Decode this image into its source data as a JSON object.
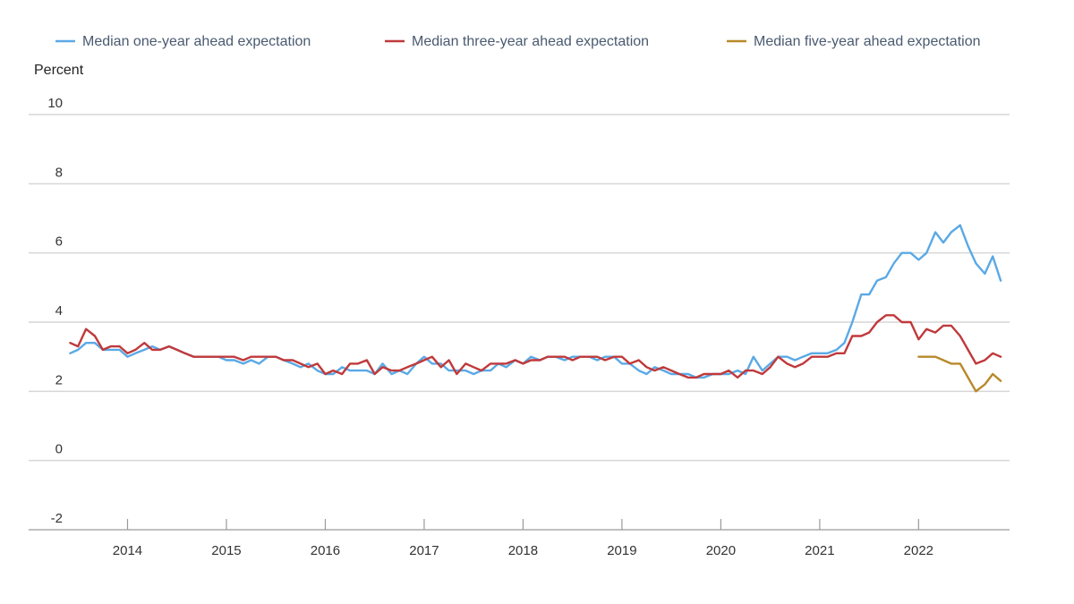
{
  "chart_data": {
    "type": "line",
    "ylabel": "Percent",
    "ylim": [
      -2,
      10
    ],
    "y_ticks": [
      "10",
      "8",
      "6",
      "4",
      "2",
      "0",
      "-2"
    ],
    "y_tick_values": [
      10,
      8,
      6,
      4,
      2,
      0,
      -2
    ],
    "x_ticks": [
      "2014",
      "2015",
      "2016",
      "2017",
      "2018",
      "2019",
      "2020",
      "2021",
      "2022"
    ],
    "x_tick_values": [
      2014,
      2015,
      2016,
      2017,
      2018,
      2019,
      2020,
      2021,
      2022
    ],
    "xlim": [
      2013.0,
      2022.92
    ],
    "grid": "horizontal",
    "legend_position": "top",
    "series": [
      {
        "name": "Median one-year ahead expectation",
        "color": "#5aa9e6",
        "points": [
          [
            2013.42,
            3.1
          ],
          [
            2013.5,
            3.2
          ],
          [
            2013.58,
            3.4
          ],
          [
            2013.67,
            3.4
          ],
          [
            2013.75,
            3.2
          ],
          [
            2013.83,
            3.2
          ],
          [
            2013.92,
            3.2
          ],
          [
            2014.0,
            3.0
          ],
          [
            2014.08,
            3.1
          ],
          [
            2014.17,
            3.2
          ],
          [
            2014.25,
            3.3
          ],
          [
            2014.33,
            3.2
          ],
          [
            2014.42,
            3.3
          ],
          [
            2014.5,
            3.2
          ],
          [
            2014.58,
            3.1
          ],
          [
            2014.67,
            3.0
          ],
          [
            2014.75,
            3.0
          ],
          [
            2014.83,
            3.0
          ],
          [
            2014.92,
            3.0
          ],
          [
            2015.0,
            2.9
          ],
          [
            2015.08,
            2.9
          ],
          [
            2015.17,
            2.8
          ],
          [
            2015.25,
            2.9
          ],
          [
            2015.33,
            2.8
          ],
          [
            2015.42,
            3.0
          ],
          [
            2015.5,
            3.0
          ],
          [
            2015.58,
            2.9
          ],
          [
            2015.67,
            2.8
          ],
          [
            2015.75,
            2.7
          ],
          [
            2015.83,
            2.8
          ],
          [
            2015.92,
            2.6
          ],
          [
            2016.0,
            2.5
          ],
          [
            2016.08,
            2.5
          ],
          [
            2016.17,
            2.7
          ],
          [
            2016.25,
            2.6
          ],
          [
            2016.33,
            2.6
          ],
          [
            2016.42,
            2.6
          ],
          [
            2016.5,
            2.5
          ],
          [
            2016.58,
            2.8
          ],
          [
            2016.67,
            2.5
          ],
          [
            2016.75,
            2.6
          ],
          [
            2016.83,
            2.5
          ],
          [
            2016.92,
            2.8
          ],
          [
            2017.0,
            3.0
          ],
          [
            2017.08,
            2.8
          ],
          [
            2017.17,
            2.8
          ],
          [
            2017.25,
            2.6
          ],
          [
            2017.33,
            2.6
          ],
          [
            2017.42,
            2.6
          ],
          [
            2017.5,
            2.5
          ],
          [
            2017.58,
            2.6
          ],
          [
            2017.67,
            2.6
          ],
          [
            2017.75,
            2.8
          ],
          [
            2017.83,
            2.7
          ],
          [
            2017.92,
            2.9
          ],
          [
            2018.0,
            2.8
          ],
          [
            2018.08,
            3.0
          ],
          [
            2018.17,
            2.9
          ],
          [
            2018.25,
            3.0
          ],
          [
            2018.33,
            3.0
          ],
          [
            2018.42,
            2.9
          ],
          [
            2018.5,
            3.0
          ],
          [
            2018.58,
            3.0
          ],
          [
            2018.67,
            3.0
          ],
          [
            2018.75,
            2.9
          ],
          [
            2018.83,
            3.0
          ],
          [
            2018.92,
            3.0
          ],
          [
            2019.0,
            2.8
          ],
          [
            2019.08,
            2.8
          ],
          [
            2019.17,
            2.6
          ],
          [
            2019.25,
            2.5
          ],
          [
            2019.33,
            2.7
          ],
          [
            2019.42,
            2.6
          ],
          [
            2019.5,
            2.5
          ],
          [
            2019.58,
            2.5
          ],
          [
            2019.67,
            2.5
          ],
          [
            2019.75,
            2.4
          ],
          [
            2019.83,
            2.4
          ],
          [
            2019.92,
            2.5
          ],
          [
            2020.0,
            2.5
          ],
          [
            2020.08,
            2.5
          ],
          [
            2020.17,
            2.6
          ],
          [
            2020.25,
            2.5
          ],
          [
            2020.33,
            3.0
          ],
          [
            2020.42,
            2.6
          ],
          [
            2020.5,
            2.8
          ],
          [
            2020.58,
            3.0
          ],
          [
            2020.67,
            3.0
          ],
          [
            2020.75,
            2.9
          ],
          [
            2020.83,
            3.0
          ],
          [
            2020.92,
            3.1
          ],
          [
            2021.0,
            3.1
          ],
          [
            2021.08,
            3.1
          ],
          [
            2021.17,
            3.2
          ],
          [
            2021.25,
            3.4
          ],
          [
            2021.33,
            4.0
          ],
          [
            2021.42,
            4.8
          ],
          [
            2021.5,
            4.8
          ],
          [
            2021.58,
            5.2
          ],
          [
            2021.67,
            5.3
          ],
          [
            2021.75,
            5.7
          ],
          [
            2021.83,
            6.0
          ],
          [
            2021.92,
            6.0
          ],
          [
            2022.0,
            5.8
          ],
          [
            2022.08,
            6.0
          ],
          [
            2022.17,
            6.6
          ],
          [
            2022.25,
            6.3
          ],
          [
            2022.33,
            6.6
          ],
          [
            2022.42,
            6.8
          ],
          [
            2022.5,
            6.2
          ],
          [
            2022.58,
            5.7
          ],
          [
            2022.67,
            5.4
          ],
          [
            2022.75,
            5.9
          ],
          [
            2022.83,
            5.2
          ]
        ]
      },
      {
        "name": "Median three-year ahead expectation",
        "color": "#c0393b",
        "points": [
          [
            2013.42,
            3.4
          ],
          [
            2013.5,
            3.3
          ],
          [
            2013.58,
            3.8
          ],
          [
            2013.67,
            3.6
          ],
          [
            2013.75,
            3.2
          ],
          [
            2013.83,
            3.3
          ],
          [
            2013.92,
            3.3
          ],
          [
            2014.0,
            3.1
          ],
          [
            2014.08,
            3.2
          ],
          [
            2014.17,
            3.4
          ],
          [
            2014.25,
            3.2
          ],
          [
            2014.33,
            3.2
          ],
          [
            2014.42,
            3.3
          ],
          [
            2014.5,
            3.2
          ],
          [
            2014.58,
            3.1
          ],
          [
            2014.67,
            3.0
          ],
          [
            2014.75,
            3.0
          ],
          [
            2014.83,
            3.0
          ],
          [
            2014.92,
            3.0
          ],
          [
            2015.0,
            3.0
          ],
          [
            2015.08,
            3.0
          ],
          [
            2015.17,
            2.9
          ],
          [
            2015.25,
            3.0
          ],
          [
            2015.33,
            3.0
          ],
          [
            2015.42,
            3.0
          ],
          [
            2015.5,
            3.0
          ],
          [
            2015.58,
            2.9
          ],
          [
            2015.67,
            2.9
          ],
          [
            2015.75,
            2.8
          ],
          [
            2015.83,
            2.7
          ],
          [
            2015.92,
            2.8
          ],
          [
            2016.0,
            2.5
          ],
          [
            2016.08,
            2.6
          ],
          [
            2016.17,
            2.5
          ],
          [
            2016.25,
            2.8
          ],
          [
            2016.33,
            2.8
          ],
          [
            2016.42,
            2.9
          ],
          [
            2016.5,
            2.5
          ],
          [
            2016.58,
            2.7
          ],
          [
            2016.67,
            2.6
          ],
          [
            2016.75,
            2.6
          ],
          [
            2016.83,
            2.7
          ],
          [
            2016.92,
            2.8
          ],
          [
            2017.0,
            2.9
          ],
          [
            2017.08,
            3.0
          ],
          [
            2017.17,
            2.7
          ],
          [
            2017.25,
            2.9
          ],
          [
            2017.33,
            2.5
          ],
          [
            2017.42,
            2.8
          ],
          [
            2017.5,
            2.7
          ],
          [
            2017.58,
            2.6
          ],
          [
            2017.67,
            2.8
          ],
          [
            2017.75,
            2.8
          ],
          [
            2017.83,
            2.8
          ],
          [
            2017.92,
            2.9
          ],
          [
            2018.0,
            2.8
          ],
          [
            2018.08,
            2.9
          ],
          [
            2018.17,
            2.9
          ],
          [
            2018.25,
            3.0
          ],
          [
            2018.33,
            3.0
          ],
          [
            2018.42,
            3.0
          ],
          [
            2018.5,
            2.9
          ],
          [
            2018.58,
            3.0
          ],
          [
            2018.67,
            3.0
          ],
          [
            2018.75,
            3.0
          ],
          [
            2018.83,
            2.9
          ],
          [
            2018.92,
            3.0
          ],
          [
            2019.0,
            3.0
          ],
          [
            2019.08,
            2.8
          ],
          [
            2019.17,
            2.9
          ],
          [
            2019.25,
            2.7
          ],
          [
            2019.33,
            2.6
          ],
          [
            2019.42,
            2.7
          ],
          [
            2019.5,
            2.6
          ],
          [
            2019.58,
            2.5
          ],
          [
            2019.67,
            2.4
          ],
          [
            2019.75,
            2.4
          ],
          [
            2019.83,
            2.5
          ],
          [
            2019.92,
            2.5
          ],
          [
            2020.0,
            2.5
          ],
          [
            2020.08,
            2.6
          ],
          [
            2020.17,
            2.4
          ],
          [
            2020.25,
            2.6
          ],
          [
            2020.33,
            2.6
          ],
          [
            2020.42,
            2.5
          ],
          [
            2020.5,
            2.7
          ],
          [
            2020.58,
            3.0
          ],
          [
            2020.67,
            2.8
          ],
          [
            2020.75,
            2.7
          ],
          [
            2020.83,
            2.8
          ],
          [
            2020.92,
            3.0
          ],
          [
            2021.0,
            3.0
          ],
          [
            2021.08,
            3.0
          ],
          [
            2021.17,
            3.1
          ],
          [
            2021.25,
            3.1
          ],
          [
            2021.33,
            3.6
          ],
          [
            2021.42,
            3.6
          ],
          [
            2021.5,
            3.7
          ],
          [
            2021.58,
            4.0
          ],
          [
            2021.67,
            4.2
          ],
          [
            2021.75,
            4.2
          ],
          [
            2021.83,
            4.0
          ],
          [
            2021.92,
            4.0
          ],
          [
            2022.0,
            3.5
          ],
          [
            2022.08,
            3.8
          ],
          [
            2022.17,
            3.7
          ],
          [
            2022.25,
            3.9
          ],
          [
            2022.33,
            3.9
          ],
          [
            2022.42,
            3.6
          ],
          [
            2022.5,
            3.2
          ],
          [
            2022.58,
            2.8
          ],
          [
            2022.67,
            2.9
          ],
          [
            2022.75,
            3.1
          ],
          [
            2022.83,
            3.0
          ]
        ]
      },
      {
        "name": "Median five-year ahead expectation",
        "color": "#b8892a",
        "points": [
          [
            2022.0,
            3.0
          ],
          [
            2022.08,
            3.0
          ],
          [
            2022.17,
            3.0
          ],
          [
            2022.25,
            2.9
          ],
          [
            2022.33,
            2.8
          ],
          [
            2022.42,
            2.8
          ],
          [
            2022.5,
            2.4
          ],
          [
            2022.58,
            2.0
          ],
          [
            2022.67,
            2.2
          ],
          [
            2022.75,
            2.5
          ],
          [
            2022.83,
            2.3
          ]
        ]
      }
    ]
  }
}
